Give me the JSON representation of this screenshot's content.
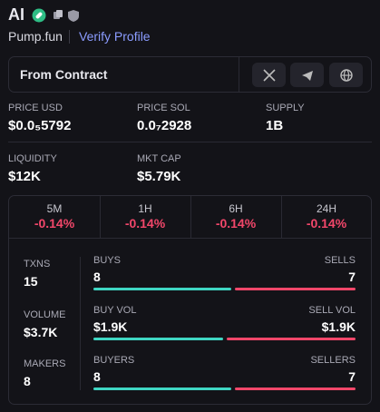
{
  "header": {
    "title": "AI",
    "platform": "Pump.fun",
    "verify": "Verify Profile"
  },
  "contract": {
    "label": "From Contract"
  },
  "stats": [
    {
      "label": "PRICE USD",
      "value": "$0.0₅5792"
    },
    {
      "label": "PRICE SOL",
      "value": "0.0₇2928"
    },
    {
      "label": "SUPPLY",
      "value": "1B"
    },
    {
      "label": "LIQUIDITY",
      "value": "$12K"
    },
    {
      "label": "MKT CAP",
      "value": "$5.79K"
    }
  ],
  "changes": [
    {
      "period": "5M",
      "value": "-0.14%"
    },
    {
      "period": "1H",
      "value": "-0.14%"
    },
    {
      "period": "6H",
      "value": "-0.14%"
    },
    {
      "period": "24H",
      "value": "-0.14%"
    }
  ],
  "totals": [
    {
      "label": "TXNS",
      "value": 15
    },
    {
      "label": "VOLUME",
      "value": "$3.7K"
    },
    {
      "label": "MAKERS",
      "value": 8
    }
  ],
  "splits": [
    {
      "left_label": "BUYS",
      "left": 8,
      "right_label": "SELLS",
      "right": 7
    },
    {
      "left_label": "BUY VOL",
      "left": {
        "value": 1900,
        "label": "$1.9K"
      },
      "right_label": "SELL VOL",
      "right": {
        "value": 1900,
        "label": "$1.9K"
      }
    },
    {
      "left_label": "BUYERS",
      "left": 8,
      "right_label": "SELLERS",
      "right": 7
    }
  ]
}
